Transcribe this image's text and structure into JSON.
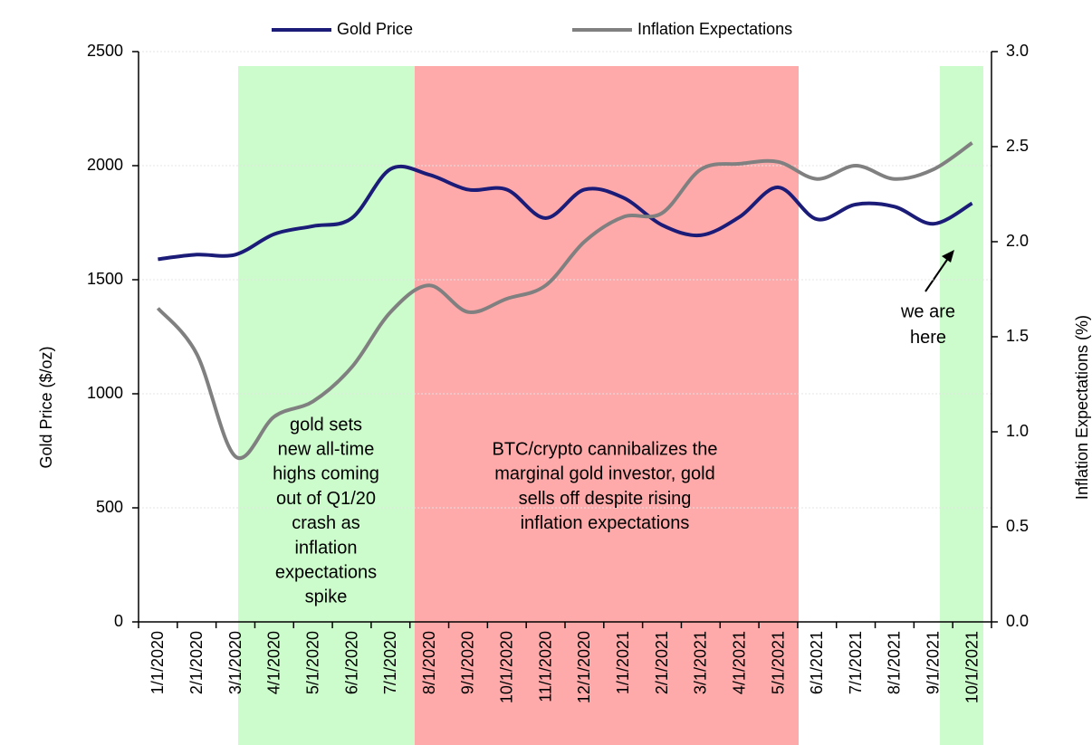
{
  "chart_data": {
    "type": "line",
    "categories": [
      "1/1/2020",
      "2/1/2020",
      "3/1/2020",
      "4/1/2020",
      "5/1/2020",
      "6/1/2020",
      "7/1/2020",
      "8/1/2020",
      "9/1/2020",
      "10/1/2020",
      "11/1/2020",
      "12/1/2020",
      "1/1/2021",
      "2/1/2021",
      "3/1/2021",
      "4/1/2021",
      "5/1/2021",
      "6/1/2021",
      "7/1/2021",
      "8/1/2021",
      "9/1/2021",
      "10/1/2021"
    ],
    "series": [
      {
        "name": "Gold Price",
        "color": "#1b1b78",
        "values": [
          1590,
          1610,
          1610,
          1700,
          1735,
          1770,
          1985,
          1960,
          1895,
          1895,
          1770,
          1895,
          1860,
          1740,
          1695,
          1775,
          1905,
          1765,
          1830,
          1820,
          1745,
          1835
        ]
      },
      {
        "name": "Inflation Expectations",
        "color": "#808080",
        "axis": "y2",
        "values": [
          1.65,
          1.41,
          0.87,
          1.08,
          1.16,
          1.34,
          1.63,
          1.77,
          1.63,
          1.7,
          1.77,
          2.0,
          2.13,
          2.15,
          2.38,
          2.41,
          2.42,
          2.33,
          2.4,
          2.33,
          2.38,
          2.52
        ]
      }
    ],
    "ylabel": "Gold Price ($/oz)",
    "y2label": "Inflation Expectations (%)",
    "ylim": [
      0,
      2500
    ],
    "yticks": [
      0,
      500,
      1000,
      1500,
      2000,
      2500
    ],
    "y2lim": [
      0,
      3
    ],
    "y2ticks": [
      {
        "value": 0,
        "label": "0.0"
      },
      {
        "value": 0.5,
        "label": "0.5"
      },
      {
        "value": 1,
        "label": "1.0"
      },
      {
        "value": 1.5,
        "label": "1.5"
      },
      {
        "value": 2,
        "label": "2.0"
      },
      {
        "value": 2.5,
        "label": "2.5"
      },
      {
        "value": 3,
        "label": "3.0"
      }
    ],
    "grid": true,
    "annotations": [
      [
        "gold sets",
        "new all-time",
        "highs coming",
        "out of Q1/20",
        "crash as",
        "inflation",
        "expectations",
        "spike"
      ],
      [
        "BTC/crypto  cannibalizes the",
        "marginal gold investor, gold",
        "sells off despite rising",
        "inflation expectations"
      ],
      [
        "we are",
        "here"
      ]
    ]
  }
}
